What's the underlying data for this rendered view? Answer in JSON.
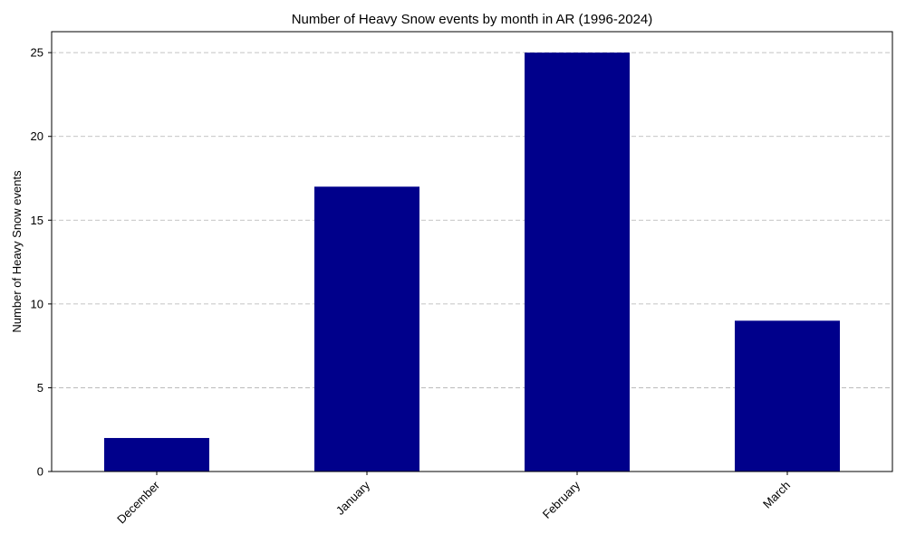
{
  "chart_data": {
    "type": "bar",
    "title": "Number of Heavy Snow events by month in AR (1996-2024)",
    "xlabel": "",
    "ylabel": "Number of Heavy Snow events",
    "categories": [
      "December",
      "January",
      "February",
      "March"
    ],
    "values": [
      2,
      17,
      25,
      9
    ],
    "ylim": [
      0,
      26.25
    ],
    "yticks": [
      0,
      5,
      10,
      15,
      20,
      25
    ],
    "grid": "y-dashed",
    "legend": "none",
    "bar_color": "#00008b"
  }
}
